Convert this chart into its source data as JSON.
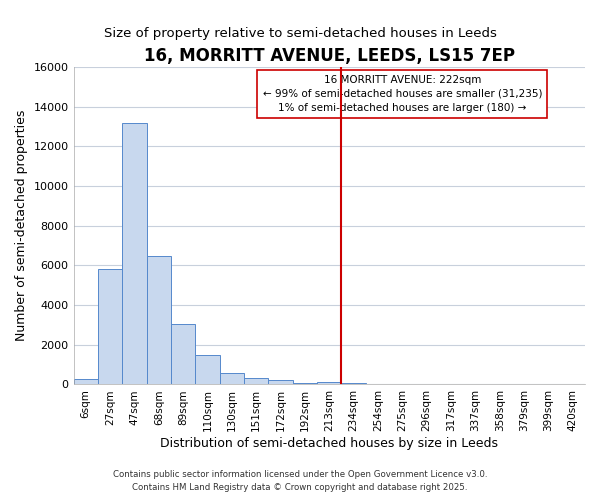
{
  "title": "16, MORRITT AVENUE, LEEDS, LS15 7EP",
  "subtitle": "Size of property relative to semi-detached houses in Leeds",
  "xlabel": "Distribution of semi-detached houses by size in Leeds",
  "ylabel": "Number of semi-detached properties",
  "bar_labels": [
    "6sqm",
    "27sqm",
    "47sqm",
    "68sqm",
    "89sqm",
    "110sqm",
    "130sqm",
    "151sqm",
    "172sqm",
    "192sqm",
    "213sqm",
    "234sqm",
    "254sqm",
    "275sqm",
    "296sqm",
    "317sqm",
    "337sqm",
    "358sqm",
    "379sqm",
    "399sqm",
    "420sqm"
  ],
  "bar_values": [
    300,
    5800,
    13200,
    6500,
    3050,
    1480,
    600,
    320,
    200,
    80,
    100,
    50,
    20,
    10,
    5,
    3,
    2,
    1,
    1,
    1,
    0
  ],
  "bar_color": "#c8d8ee",
  "bar_edge_color": "#5588cc",
  "ylim": [
    0,
    16000
  ],
  "yticks": [
    0,
    2000,
    4000,
    6000,
    8000,
    10000,
    12000,
    14000,
    16000
  ],
  "vline_x_index": 10.5,
  "vline_color": "#cc0000",
  "annotation_text": "16 MORRITT AVENUE: 222sqm\n← 99% of semi-detached houses are smaller (31,235)\n1% of semi-detached houses are larger (180) →",
  "bg_color": "#ffffff",
  "grid_color": "#c8d0dc",
  "footer1": "Contains HM Land Registry data © Crown copyright and database right 2025.",
  "footer2": "Contains public sector information licensed under the Open Government Licence v3.0.",
  "title_fontsize": 12,
  "subtitle_fontsize": 9.5,
  "tick_label_fontsize": 7.5,
  "ylabel_fontsize": 9,
  "xlabel_fontsize": 9
}
